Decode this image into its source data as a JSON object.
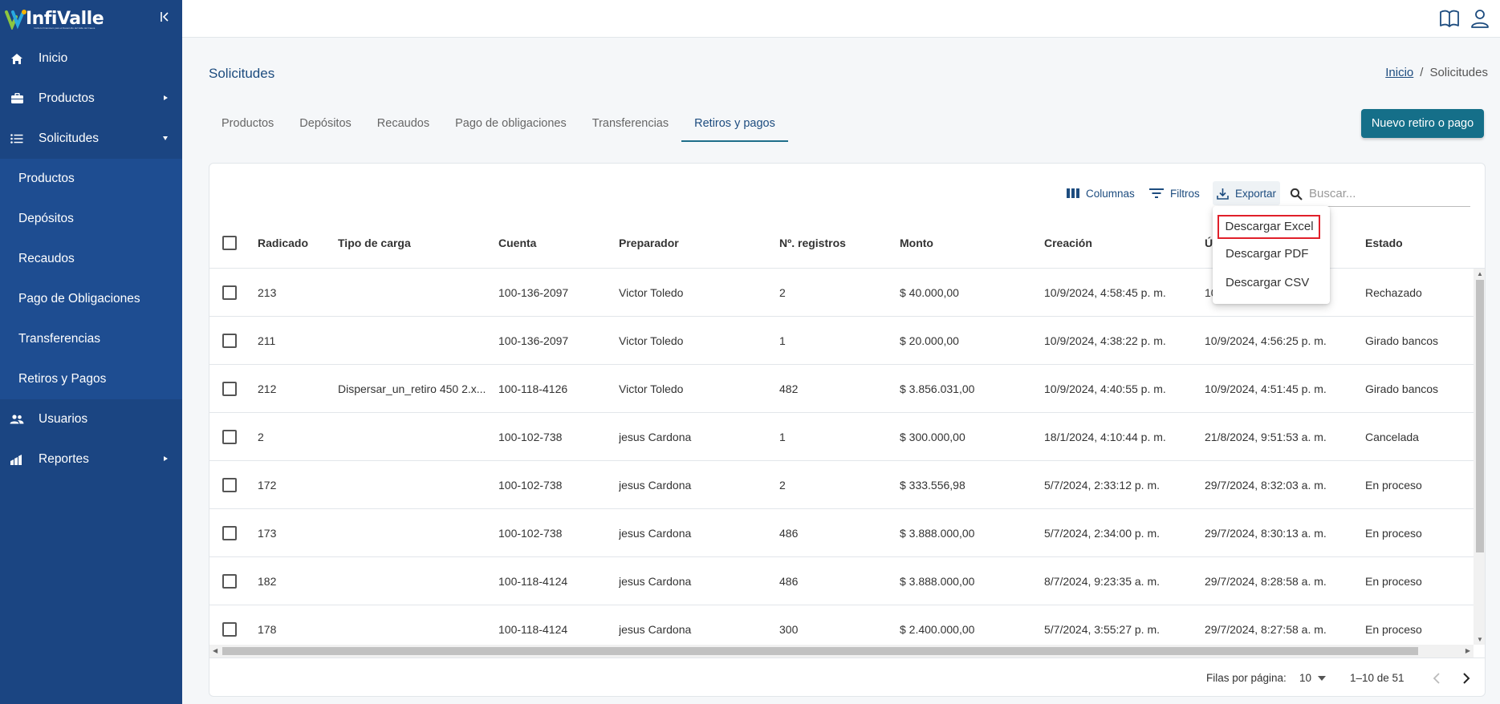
{
  "app": {
    "logo_text": "InfiValle",
    "logo_tagline": "Instituto Financiero para el Desarrollo del Valle del Cauca"
  },
  "sidebar": {
    "items": [
      {
        "label": "Inicio",
        "icon": "home-icon"
      },
      {
        "label": "Productos",
        "icon": "briefcase-icon",
        "chevron": "right"
      },
      {
        "label": "Solicitudes",
        "icon": "list-icon",
        "chevron": "down"
      }
    ],
    "submenu": [
      "Productos",
      "Depósitos",
      "Recaudos",
      "Pago de Obligaciones",
      "Transferencias",
      "Retiros y Pagos"
    ],
    "bottom_items": [
      {
        "label": "Usuarios",
        "icon": "users-icon"
      },
      {
        "label": "Reportes",
        "icon": "bar-chart-icon",
        "chevron": "right"
      }
    ]
  },
  "header": {
    "title": "Solicitudes",
    "breadcrumb": {
      "home": "Inicio",
      "separator": "/",
      "current": "Solicitudes"
    }
  },
  "tabs": [
    "Productos",
    "Depósitos",
    "Recaudos",
    "Pago de obligaciones",
    "Transferencias",
    "Retiros y pagos"
  ],
  "active_tab": "Retiros y pagos",
  "new_button": "Nuevo retiro o pago",
  "toolbar": {
    "columns": "Columnas",
    "filters": "Filtros",
    "export": "Exportar",
    "search_placeholder": "Buscar..."
  },
  "export_menu": {
    "items": [
      "Descargar Excel",
      "Descargar PDF",
      "Descargar CSV"
    ],
    "highlighted": "Descargar Excel"
  },
  "table": {
    "headers": [
      "Radicado",
      "Tipo de carga",
      "Cuenta",
      "Preparador",
      "Nº. registros",
      "Monto",
      "Creación",
      "Última actualización",
      "Estado"
    ],
    "header_visible": {
      "updated": "Ú"
    },
    "rows": [
      {
        "radicado": "213",
        "tipo": "",
        "cuenta": "100-136-2097",
        "preparador": "Victor Toledo",
        "registros": "2",
        "monto": "$ 40.000,00",
        "creacion": "10/9/2024, 4:58:45 p. m.",
        "actualizacion": "10",
        "estado": "Rechazado"
      },
      {
        "radicado": "211",
        "tipo": "",
        "cuenta": "100-136-2097",
        "preparador": "Victor Toledo",
        "registros": "1",
        "monto": "$ 20.000,00",
        "creacion": "10/9/2024, 4:38:22 p. m.",
        "actualizacion": "10/9/2024, 4:56:25 p. m.",
        "estado": "Girado bancos"
      },
      {
        "radicado": "212",
        "tipo": "Dispersar_un_retiro 450 2.x...",
        "cuenta": "100-118-4126",
        "preparador": "Victor Toledo",
        "registros": "482",
        "monto": "$ 3.856.031,00",
        "creacion": "10/9/2024, 4:40:55 p. m.",
        "actualizacion": "10/9/2024, 4:51:45 p. m.",
        "estado": "Girado bancos"
      },
      {
        "radicado": "2",
        "tipo": "",
        "cuenta": "100-102-738",
        "preparador": "jesus Cardona",
        "registros": "1",
        "monto": "$ 300.000,00",
        "creacion": "18/1/2024, 4:10:44 p. m.",
        "actualizacion": "21/8/2024, 9:51:53 a. m.",
        "estado": "Cancelada"
      },
      {
        "radicado": "172",
        "tipo": "",
        "cuenta": "100-102-738",
        "preparador": "jesus Cardona",
        "registros": "2",
        "monto": "$ 333.556,98",
        "creacion": "5/7/2024, 2:33:12 p. m.",
        "actualizacion": "29/7/2024, 8:32:03 a. m.",
        "estado": "En proceso"
      },
      {
        "radicado": "173",
        "tipo": "",
        "cuenta": "100-102-738",
        "preparador": "jesus Cardona",
        "registros": "486",
        "monto": "$ 3.888.000,00",
        "creacion": "5/7/2024, 2:34:00 p. m.",
        "actualizacion": "29/7/2024, 8:30:13 a. m.",
        "estado": "En proceso"
      },
      {
        "radicado": "182",
        "tipo": "",
        "cuenta": "100-118-4124",
        "preparador": "jesus Cardona",
        "registros": "486",
        "monto": "$ 3.888.000,00",
        "creacion": "8/7/2024, 9:23:35 a. m.",
        "actualizacion": "29/7/2024, 8:28:58 a. m.",
        "estado": "En proceso"
      },
      {
        "radicado": "178",
        "tipo": "",
        "cuenta": "100-118-4124",
        "preparador": "jesus Cardona",
        "registros": "300",
        "monto": "$ 2.400.000,00",
        "creacion": "5/7/2024, 3:55:27 p. m.",
        "actualizacion": "29/7/2024, 8:27:58 a. m.",
        "estado": "En proceso"
      }
    ]
  },
  "pagination": {
    "rows_per_page_label": "Filas por página:",
    "rows_per_page": "10",
    "range": "1–10 de 51"
  },
  "colors": {
    "sidebar": "#1b4582",
    "submenu": "#1e4d91",
    "primary": "#156f89",
    "highlight": "#e0202a"
  }
}
